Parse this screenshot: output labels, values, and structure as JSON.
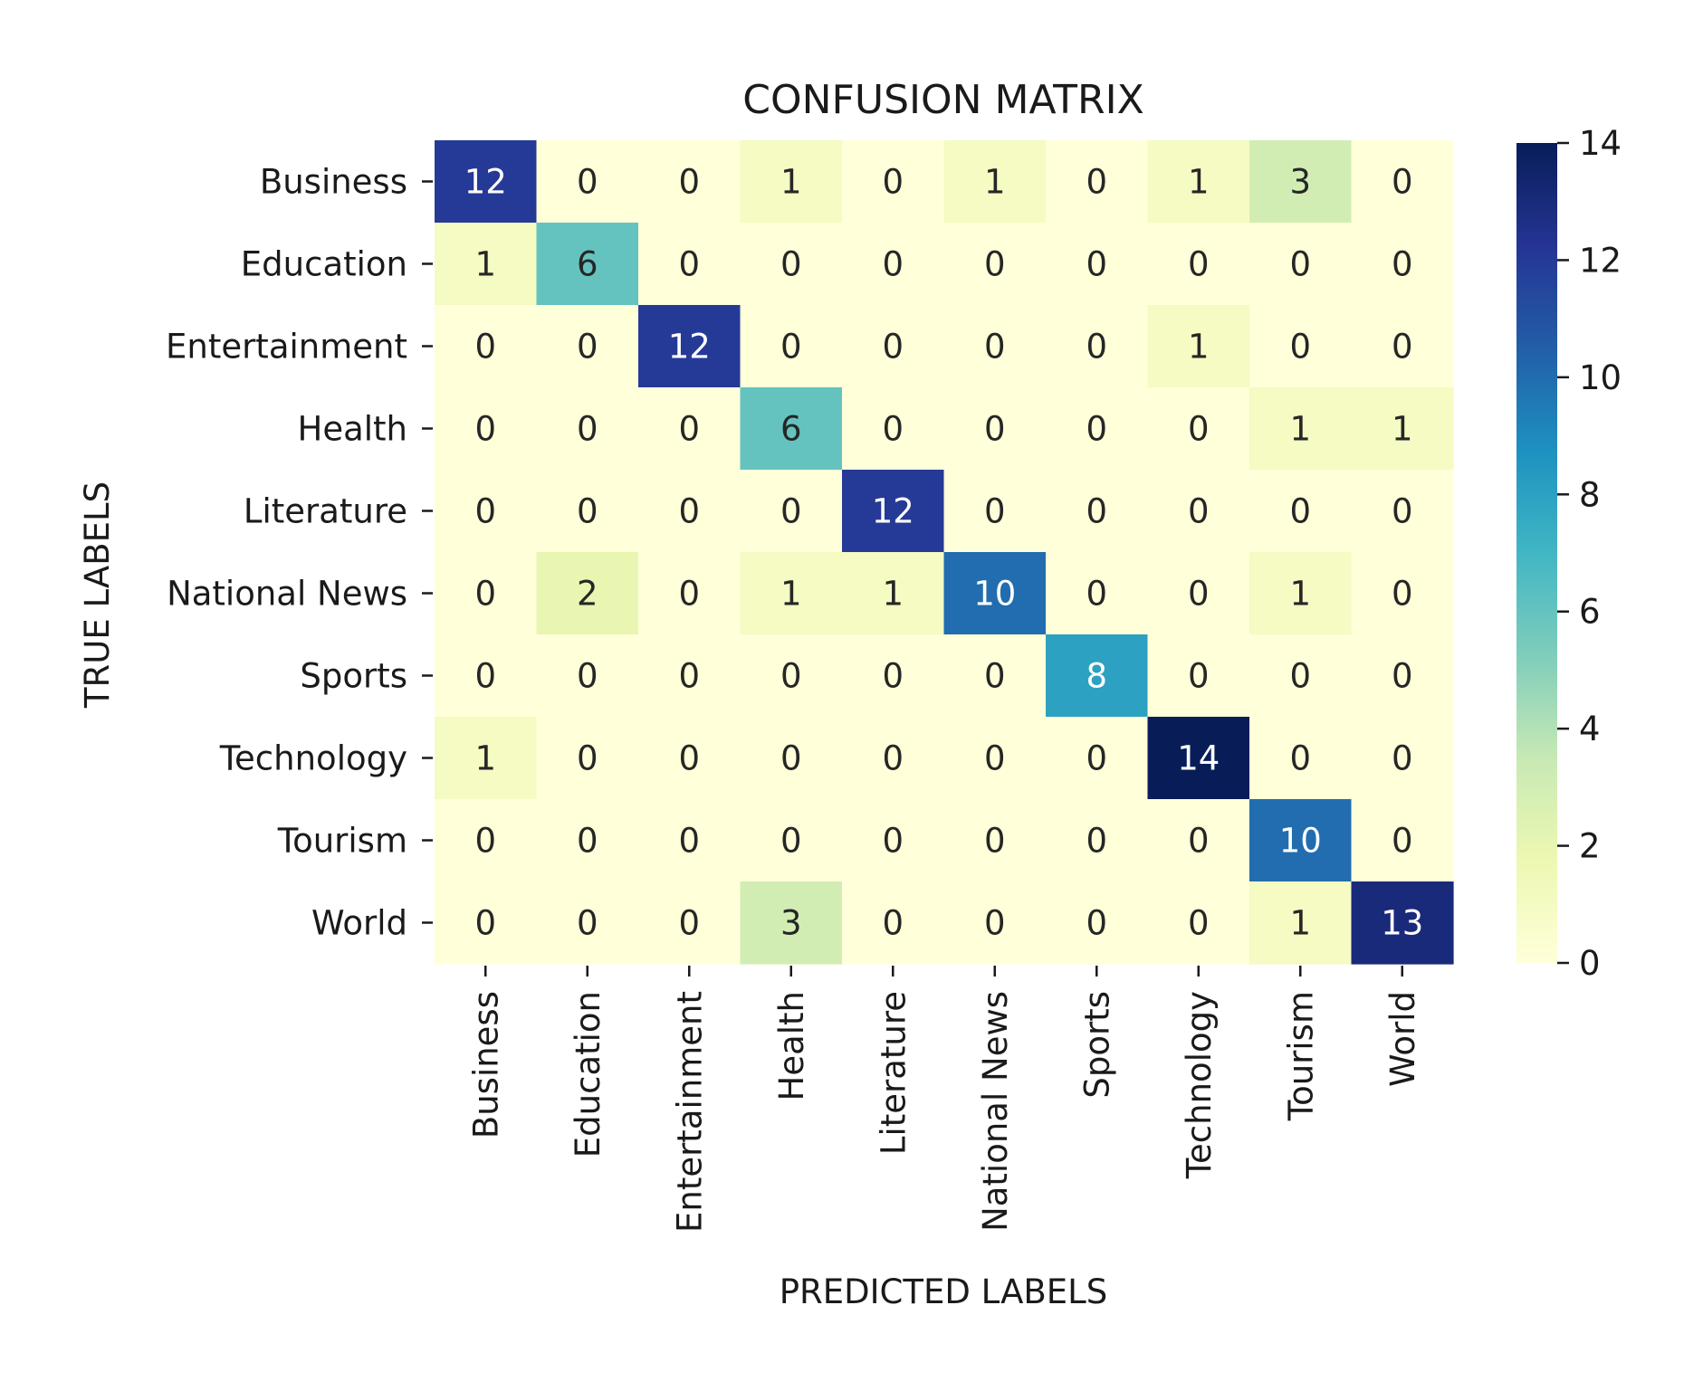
{
  "chart_data": {
    "type": "heatmap",
    "title": "CONFUSION MATRIX",
    "xlabel": "PREDICTED LABELS",
    "ylabel": "TRUE LABELS",
    "x_categories": [
      "Business",
      "Education",
      "Entertainment",
      "Health",
      "Literature",
      "National News",
      "Sports",
      "Technology",
      "Tourism",
      "World"
    ],
    "y_categories": [
      "Business",
      "Education",
      "Entertainment",
      "Health",
      "Literature",
      "National News",
      "Sports",
      "Technology",
      "Tourism",
      "World"
    ],
    "values": [
      [
        12,
        0,
        0,
        1,
        0,
        1,
        0,
        1,
        3,
        0
      ],
      [
        1,
        6,
        0,
        0,
        0,
        0,
        0,
        0,
        0,
        0
      ],
      [
        0,
        0,
        12,
        0,
        0,
        0,
        0,
        1,
        0,
        0
      ],
      [
        0,
        0,
        0,
        6,
        0,
        0,
        0,
        0,
        1,
        1
      ],
      [
        0,
        0,
        0,
        0,
        12,
        0,
        0,
        0,
        0,
        0
      ],
      [
        0,
        2,
        0,
        1,
        1,
        10,
        0,
        0,
        1,
        0
      ],
      [
        0,
        0,
        0,
        0,
        0,
        0,
        8,
        0,
        0,
        0
      ],
      [
        1,
        0,
        0,
        0,
        0,
        0,
        0,
        14,
        0,
        0
      ],
      [
        0,
        0,
        0,
        0,
        0,
        0,
        0,
        0,
        10,
        0
      ],
      [
        0,
        0,
        0,
        3,
        0,
        0,
        0,
        0,
        1,
        13
      ]
    ],
    "colorbar": {
      "range": [
        0,
        14
      ],
      "ticks": [
        0,
        2,
        4,
        6,
        8,
        10,
        12,
        14
      ],
      "colormap": "YlGnBu",
      "stops": [
        "#ffffd9",
        "#edf8b1",
        "#c7e9b4",
        "#7fcdbb",
        "#41b6c4",
        "#1d91c0",
        "#225ea8",
        "#253494",
        "#081d58"
      ]
    }
  }
}
